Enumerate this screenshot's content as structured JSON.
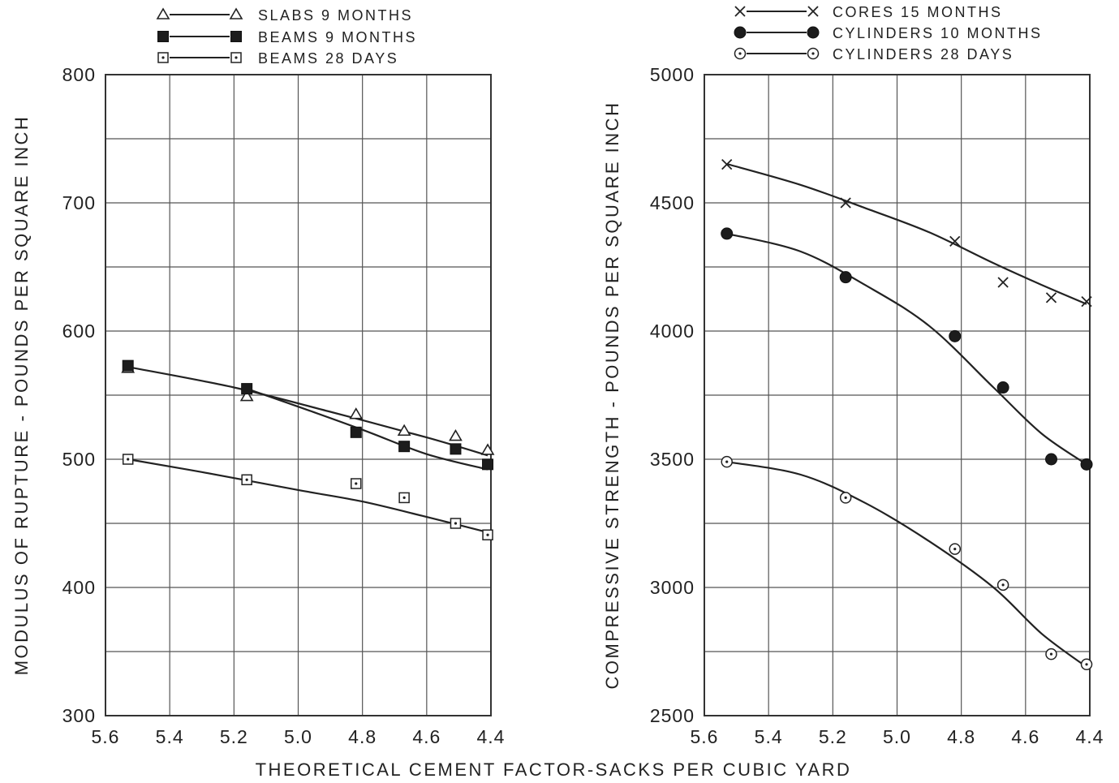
{
  "figure": {
    "xlabel": "THEORETICAL CEMENT FACTOR-SACKS PER CUBIC YARD"
  },
  "chart_data": [
    {
      "type": "line",
      "ylabel": "MODULUS OF RUPTURE - POUNDS PER SQUARE INCH",
      "xlim": [
        5.6,
        4.4
      ],
      "ylim": [
        300,
        800
      ],
      "x_ticks": [
        "5.6",
        "5.4",
        "5.2",
        "5.0",
        "4.8",
        "4.6",
        "4.4"
      ],
      "y_ticks": [
        "800",
        "700",
        "600",
        "500",
        "400",
        "300"
      ],
      "grid": true,
      "legend_position": "top",
      "series": [
        {
          "name": "SLABS 9 MONTHS",
          "marker": "triangle-open",
          "x": [
            5.53,
            5.16,
            4.82,
            4.67,
            4.51,
            4.41
          ],
          "y": [
            571,
            549,
            535,
            522,
            518,
            507
          ],
          "fit": [
            [
              5.53,
              572
            ],
            [
              5.2,
              556
            ],
            [
              4.9,
              537
            ],
            [
              4.6,
              517
            ],
            [
              4.41,
              503
            ]
          ]
        },
        {
          "name": "BEAMS 9 MONTHS",
          "marker": "square-filled",
          "x": [
            5.53,
            5.16,
            4.82,
            4.67,
            4.51,
            4.41
          ],
          "y": [
            573,
            555,
            521,
            510,
            508,
            496
          ],
          "fit": [
            [
              5.16,
              555
            ],
            [
              5.0,
              541
            ],
            [
              4.8,
              523
            ],
            [
              4.6,
              504
            ],
            [
              4.41,
              492
            ]
          ]
        },
        {
          "name": "BEAMS 28 DAYS",
          "marker": "square-dot",
          "x": [
            5.53,
            5.16,
            4.82,
            4.67,
            4.51,
            4.41
          ],
          "y": [
            500,
            484,
            481,
            470,
            450,
            441
          ],
          "fit": [
            [
              5.53,
              500
            ],
            [
              5.3,
              490
            ],
            [
              5.0,
              476
            ],
            [
              4.8,
              467
            ],
            [
              4.6,
              455
            ],
            [
              4.41,
              443
            ]
          ]
        }
      ]
    },
    {
      "type": "line",
      "ylabel": "COMPRESSIVE STRENGTH - POUNDS PER SQUARE INCH",
      "xlim": [
        5.6,
        4.4
      ],
      "ylim": [
        2500,
        5000
      ],
      "x_ticks": [
        "5.6",
        "5.4",
        "5.2",
        "5.0",
        "4.8",
        "4.6",
        "4.4"
      ],
      "y_ticks": [
        "5000",
        "4500",
        "4000",
        "3500",
        "3000",
        "2500"
      ],
      "grid": true,
      "legend_position": "top",
      "series": [
        {
          "name": "CORES 15 MONTHS",
          "marker": "x",
          "x": [
            5.53,
            5.16,
            4.82,
            4.67,
            4.52,
            4.41
          ],
          "y": [
            4650,
            4500,
            4350,
            4190,
            4130,
            4115
          ],
          "fit": [
            [
              5.53,
              4652
            ],
            [
              5.3,
              4570
            ],
            [
              5.1,
              4480
            ],
            [
              4.9,
              4385
            ],
            [
              4.7,
              4265
            ],
            [
              4.55,
              4180
            ],
            [
              4.41,
              4105
            ]
          ]
        },
        {
          "name": "CYLINDERS 10 MONTHS",
          "marker": "circle-filled",
          "x": [
            5.53,
            5.16,
            4.82,
            4.67,
            4.52,
            4.41
          ],
          "y": [
            4380,
            4210,
            3980,
            3780,
            3500,
            3480
          ],
          "fit": [
            [
              5.53,
              4380
            ],
            [
              5.3,
              4310
            ],
            [
              5.1,
              4180
            ],
            [
              4.9,
              4020
            ],
            [
              4.7,
              3780
            ],
            [
              4.55,
              3600
            ],
            [
              4.41,
              3480
            ]
          ]
        },
        {
          "name": "CYLINDERS 28 DAYS",
          "marker": "circle-dot",
          "x": [
            5.53,
            5.16,
            4.82,
            4.67,
            4.52,
            4.41
          ],
          "y": [
            3490,
            3350,
            3150,
            3010,
            2740,
            2700
          ],
          "fit": [
            [
              5.53,
              3490
            ],
            [
              5.3,
              3440
            ],
            [
              5.1,
              3330
            ],
            [
              4.9,
              3180
            ],
            [
              4.7,
              3000
            ],
            [
              4.55,
              2820
            ],
            [
              4.41,
              2690
            ]
          ]
        }
      ]
    }
  ]
}
